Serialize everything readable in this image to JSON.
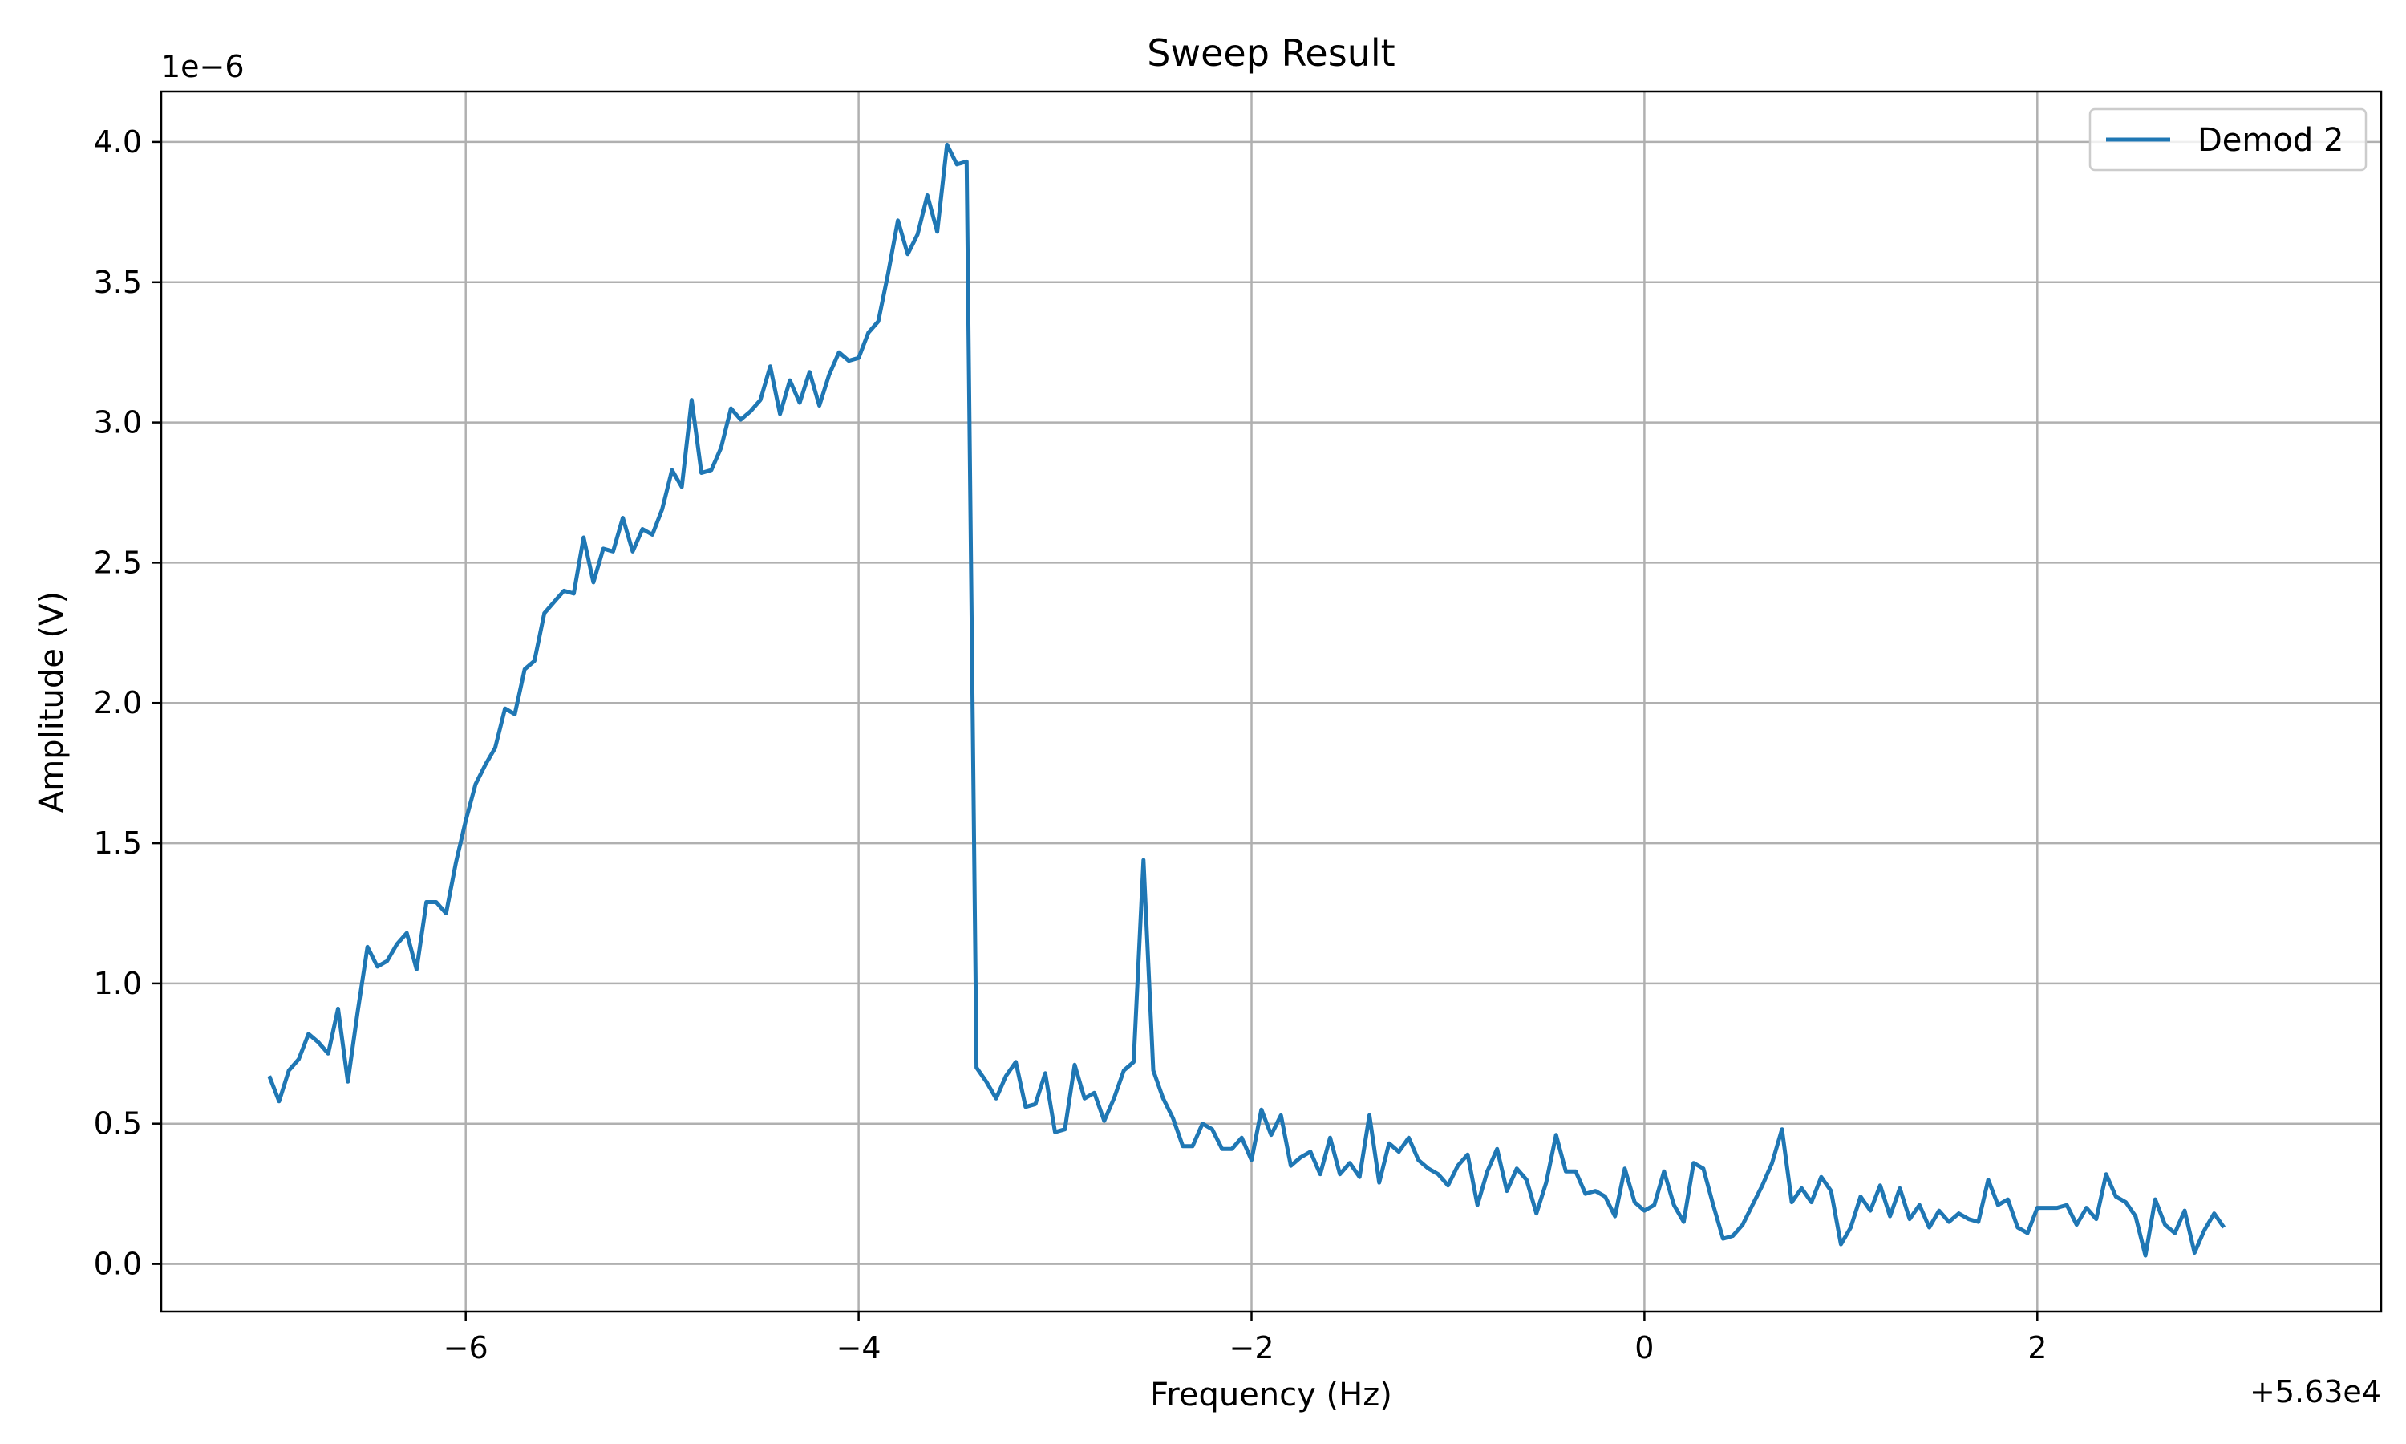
{
  "chart_data": {
    "type": "line",
    "title": "Sweep Result",
    "xlabel": "Frequency (Hz)",
    "ylabel": "Amplitude (V)",
    "x_offset_label": "+5.63e4",
    "y_scale_label": "1e−6",
    "xlim": [
      56292.45,
      56303.75
    ],
    "ylim": [
      -0.17,
      4.18
    ],
    "xticks": [
      56294,
      56296,
      56298,
      56300,
      56302
    ],
    "xtick_labels": [
      "−6",
      "−4",
      "−2",
      "0",
      "2"
    ],
    "yticks": [
      0.0,
      0.5,
      1.0,
      1.5,
      2.0,
      2.5,
      3.0,
      3.5,
      4.0
    ],
    "ytick_labels": [
      "0.0",
      "0.5",
      "1.0",
      "1.5",
      "2.0",
      "2.5",
      "3.0",
      "3.5",
      "4.0"
    ],
    "grid": true,
    "legend_position": "top-right",
    "series": [
      {
        "name": "Demod 2",
        "color": "#1f77b4",
        "points": [
          [
            56293.0,
            0.67
          ],
          [
            56293.05,
            0.58
          ],
          [
            56293.1,
            0.69
          ],
          [
            56293.15,
            0.73
          ],
          [
            56293.2,
            0.82
          ],
          [
            56293.25,
            0.79
          ],
          [
            56293.3,
            0.75
          ],
          [
            56293.35,
            0.91
          ],
          [
            56293.4,
            0.65
          ],
          [
            56293.45,
            0.9
          ],
          [
            56293.5,
            1.13
          ],
          [
            56293.55,
            1.06
          ],
          [
            56293.6,
            1.08
          ],
          [
            56293.65,
            1.14
          ],
          [
            56293.7,
            1.18
          ],
          [
            56293.75,
            1.05
          ],
          [
            56293.8,
            1.29
          ],
          [
            56293.85,
            1.29
          ],
          [
            56293.9,
            1.25
          ],
          [
            56293.95,
            1.43
          ],
          [
            56294.0,
            1.58
          ],
          [
            56294.05,
            1.71
          ],
          [
            56294.1,
            1.78
          ],
          [
            56294.15,
            1.84
          ],
          [
            56294.2,
            1.98
          ],
          [
            56294.25,
            1.96
          ],
          [
            56294.3,
            2.12
          ],
          [
            56294.35,
            2.15
          ],
          [
            56294.4,
            2.32
          ],
          [
            56294.45,
            2.36
          ],
          [
            56294.5,
            2.4
          ],
          [
            56294.55,
            2.39
          ],
          [
            56294.6,
            2.59
          ],
          [
            56294.65,
            2.43
          ],
          [
            56294.7,
            2.55
          ],
          [
            56294.75,
            2.54
          ],
          [
            56294.8,
            2.66
          ],
          [
            56294.85,
            2.54
          ],
          [
            56294.9,
            2.62
          ],
          [
            56294.95,
            2.6
          ],
          [
            56295.0,
            2.69
          ],
          [
            56295.05,
            2.83
          ],
          [
            56295.1,
            2.77
          ],
          [
            56295.15,
            3.08
          ],
          [
            56295.2,
            2.82
          ],
          [
            56295.25,
            2.83
          ],
          [
            56295.3,
            2.91
          ],
          [
            56295.35,
            3.05
          ],
          [
            56295.4,
            3.01
          ],
          [
            56295.45,
            3.04
          ],
          [
            56295.5,
            3.08
          ],
          [
            56295.55,
            3.2
          ],
          [
            56295.6,
            3.03
          ],
          [
            56295.65,
            3.15
          ],
          [
            56295.7,
            3.07
          ],
          [
            56295.75,
            3.18
          ],
          [
            56295.8,
            3.06
          ],
          [
            56295.85,
            3.17
          ],
          [
            56295.9,
            3.25
          ],
          [
            56295.95,
            3.22
          ],
          [
            56296.0,
            3.23
          ],
          [
            56296.05,
            3.32
          ],
          [
            56296.1,
            3.36
          ],
          [
            56296.15,
            3.53
          ],
          [
            56296.2,
            3.72
          ],
          [
            56296.25,
            3.6
          ],
          [
            56296.3,
            3.67
          ],
          [
            56296.35,
            3.81
          ],
          [
            56296.4,
            3.68
          ],
          [
            56296.45,
            3.99
          ],
          [
            56296.5,
            3.92
          ],
          [
            56296.55,
            3.93
          ],
          [
            56296.6,
            0.7
          ],
          [
            56296.65,
            0.65
          ],
          [
            56296.7,
            0.59
          ],
          [
            56296.75,
            0.67
          ],
          [
            56296.8,
            0.72
          ],
          [
            56296.85,
            0.56
          ],
          [
            56296.9,
            0.57
          ],
          [
            56296.95,
            0.68
          ],
          [
            56297.0,
            0.47
          ],
          [
            56297.05,
            0.48
          ],
          [
            56297.1,
            0.71
          ],
          [
            56297.15,
            0.59
          ],
          [
            56297.2,
            0.61
          ],
          [
            56297.25,
            0.51
          ],
          [
            56297.3,
            0.59
          ],
          [
            56297.35,
            0.69
          ],
          [
            56297.4,
            0.72
          ],
          [
            56297.45,
            1.44
          ],
          [
            56297.5,
            0.69
          ],
          [
            56297.55,
            0.59
          ],
          [
            56297.6,
            0.52
          ],
          [
            56297.65,
            0.42
          ],
          [
            56297.7,
            0.42
          ],
          [
            56297.75,
            0.5
          ],
          [
            56297.8,
            0.48
          ],
          [
            56297.85,
            0.41
          ],
          [
            56297.9,
            0.41
          ],
          [
            56297.95,
            0.45
          ],
          [
            56298.0,
            0.37
          ],
          [
            56298.05,
            0.55
          ],
          [
            56298.1,
            0.46
          ],
          [
            56298.15,
            0.53
          ],
          [
            56298.2,
            0.35
          ],
          [
            56298.25,
            0.38
          ],
          [
            56298.3,
            0.4
          ],
          [
            56298.35,
            0.32
          ],
          [
            56298.4,
            0.45
          ],
          [
            56298.45,
            0.32
          ],
          [
            56298.5,
            0.36
          ],
          [
            56298.55,
            0.31
          ],
          [
            56298.6,
            0.53
          ],
          [
            56298.65,
            0.29
          ],
          [
            56298.7,
            0.43
          ],
          [
            56298.75,
            0.4
          ],
          [
            56298.8,
            0.45
          ],
          [
            56298.85,
            0.37
          ],
          [
            56298.9,
            0.34
          ],
          [
            56298.95,
            0.32
          ],
          [
            56299.0,
            0.28
          ],
          [
            56299.05,
            0.35
          ],
          [
            56299.1,
            0.39
          ],
          [
            56299.15,
            0.21
          ],
          [
            56299.2,
            0.33
          ],
          [
            56299.25,
            0.41
          ],
          [
            56299.3,
            0.26
          ],
          [
            56299.35,
            0.34
          ],
          [
            56299.4,
            0.3
          ],
          [
            56299.45,
            0.18
          ],
          [
            56299.5,
            0.29
          ],
          [
            56299.55,
            0.46
          ],
          [
            56299.6,
            0.33
          ],
          [
            56299.65,
            0.33
          ],
          [
            56299.7,
            0.25
          ],
          [
            56299.75,
            0.26
          ],
          [
            56299.8,
            0.24
          ],
          [
            56299.85,
            0.17
          ],
          [
            56299.9,
            0.34
          ],
          [
            56299.95,
            0.22
          ],
          [
            56300.0,
            0.19
          ],
          [
            56300.05,
            0.21
          ],
          [
            56300.1,
            0.33
          ],
          [
            56300.15,
            0.21
          ],
          [
            56300.2,
            0.15
          ],
          [
            56300.25,
            0.36
          ],
          [
            56300.3,
            0.34
          ],
          [
            56300.35,
            0.21
          ],
          [
            56300.4,
            0.09
          ],
          [
            56300.45,
            0.1
          ],
          [
            56300.5,
            0.14
          ],
          [
            56300.55,
            0.21
          ],
          [
            56300.6,
            0.28
          ],
          [
            56300.65,
            0.36
          ],
          [
            56300.7,
            0.48
          ],
          [
            56300.75,
            0.22
          ],
          [
            56300.8,
            0.27
          ],
          [
            56300.85,
            0.22
          ],
          [
            56300.9,
            0.31
          ],
          [
            56300.95,
            0.26
          ],
          [
            56301.0,
            0.07
          ],
          [
            56301.05,
            0.13
          ],
          [
            56301.1,
            0.24
          ],
          [
            56301.15,
            0.19
          ],
          [
            56301.2,
            0.28
          ],
          [
            56301.25,
            0.17
          ],
          [
            56301.3,
            0.27
          ],
          [
            56301.35,
            0.16
          ],
          [
            56301.4,
            0.21
          ],
          [
            56301.45,
            0.13
          ],
          [
            56301.5,
            0.19
          ],
          [
            56301.55,
            0.15
          ],
          [
            56301.6,
            0.18
          ],
          [
            56301.65,
            0.16
          ],
          [
            56301.7,
            0.15
          ],
          [
            56301.75,
            0.3
          ],
          [
            56301.8,
            0.21
          ],
          [
            56301.85,
            0.23
          ],
          [
            56301.9,
            0.13
          ],
          [
            56301.95,
            0.11
          ],
          [
            56302.0,
            0.2
          ],
          [
            56302.05,
            0.2
          ],
          [
            56302.1,
            0.2
          ],
          [
            56302.15,
            0.21
          ],
          [
            56302.2,
            0.14
          ],
          [
            56302.25,
            0.2
          ],
          [
            56302.3,
            0.16
          ],
          [
            56302.35,
            0.32
          ],
          [
            56302.4,
            0.24
          ],
          [
            56302.45,
            0.22
          ],
          [
            56302.5,
            0.17
          ],
          [
            56302.55,
            0.03
          ],
          [
            56302.6,
            0.23
          ],
          [
            56302.65,
            0.14
          ],
          [
            56302.7,
            0.11
          ],
          [
            56302.75,
            0.19
          ],
          [
            56302.8,
            0.04
          ],
          [
            56302.85,
            0.12
          ],
          [
            56302.9,
            0.18
          ],
          [
            56302.95,
            0.13
          ]
        ]
      }
    ]
  }
}
